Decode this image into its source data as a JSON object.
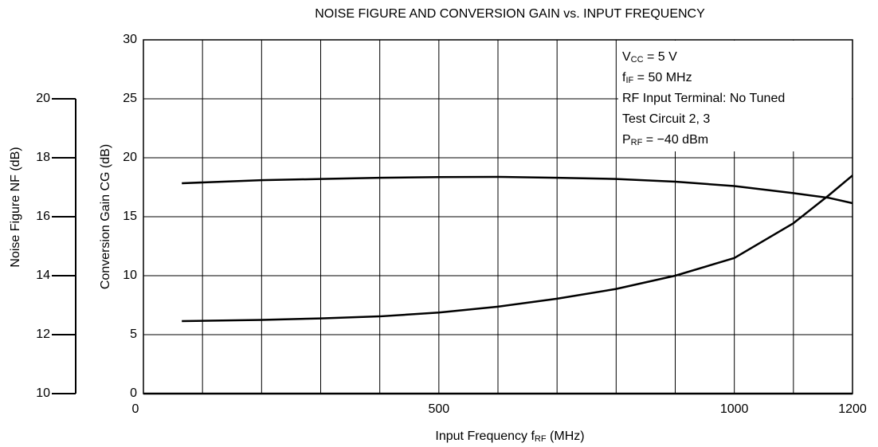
{
  "chart_data": {
    "type": "line",
    "title": "NOISE FIGURE AND CONVERSION GAIN vs. INPUT FREQUENCY",
    "xlabel": {
      "main": "Input Frequency  f",
      "sub": "RF",
      "rest": " (MHz)"
    },
    "ylabel": "Conversion Gain  CG (dB)",
    "y2label": "Noise Figure  NF (dB)",
    "annotation": [
      {
        "main": "V",
        "sub": "CC",
        "rest": " = 5 V"
      },
      {
        "main": "f",
        "sub": "IF",
        "rest": " = 50 MHz"
      },
      {
        "main": "RF Input Terminal:  No Tuned"
      },
      {
        "main": "Test Circuit 2, 3"
      },
      {
        "main": "P",
        "sub": "RF",
        "rest": " = −40 dBm"
      }
    ],
    "x": [
      65,
      200,
      300,
      400,
      500,
      600,
      700,
      800,
      900,
      1000,
      1100,
      1160,
      1200
    ],
    "series": [
      {
        "color": "#000000",
        "values": [
          17.84,
          18.1,
          18.2,
          18.3,
          18.36,
          18.38,
          18.3,
          18.2,
          17.97,
          17.6,
          17.0,
          16.6,
          16.15
        ]
      },
      {
        "color": "#000000",
        "axis": "y2",
        "values": [
          12.46,
          12.5,
          12.55,
          12.62,
          12.75,
          12.95,
          13.22,
          13.55,
          14.0,
          14.6,
          15.78,
          16.73,
          17.4
        ]
      }
    ],
    "xlim": [
      0,
      1200
    ],
    "xticks": [
      0,
      500,
      1000,
      1200
    ],
    "xgrid": [
      0,
      100,
      200,
      300,
      400,
      500,
      600,
      700,
      800,
      900,
      1000,
      1100,
      1200
    ],
    "ylim": [
      0,
      30
    ],
    "yticks": [
      0,
      5,
      10,
      15,
      20,
      25,
      30
    ],
    "y2lim": [
      10,
      22
    ],
    "y2ticks": [
      10,
      12,
      14,
      16,
      18,
      20
    ],
    "grid": true
  }
}
